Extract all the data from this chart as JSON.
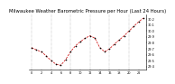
{
  "title": "Milwaukee Weather Barometric Pressure per Hour (Last 24 Hours)",
  "background_color": "#ffffff",
  "plot_bg": "#ffffff",
  "line_color": "#cc0000",
  "marker_color": "#000000",
  "grid_color": "#888888",
  "hours": [
    0,
    1,
    2,
    3,
    4,
    5,
    6,
    7,
    8,
    9,
    10,
    11,
    12,
    13,
    14,
    15,
    16,
    17,
    18,
    19,
    20,
    21,
    22,
    23
  ],
  "pressure": [
    29.72,
    29.68,
    29.65,
    29.58,
    29.5,
    29.44,
    29.42,
    29.52,
    29.65,
    29.75,
    29.82,
    29.88,
    29.92,
    29.88,
    29.72,
    29.65,
    29.7,
    29.78,
    29.85,
    29.92,
    30.0,
    30.08,
    30.16,
    30.22
  ],
  "ylim_min": 29.35,
  "ylim_max": 30.28,
  "ytick_min": 29.4,
  "ytick_max": 30.2,
  "ytick_step": 0.1,
  "title_fontsize": 3.8,
  "tick_fontsize": 2.5,
  "line_width": 0.5,
  "marker_size": 1.5,
  "grid_lw": 0.35,
  "vgrid_hours": [
    0,
    4,
    8,
    12,
    16,
    20
  ]
}
